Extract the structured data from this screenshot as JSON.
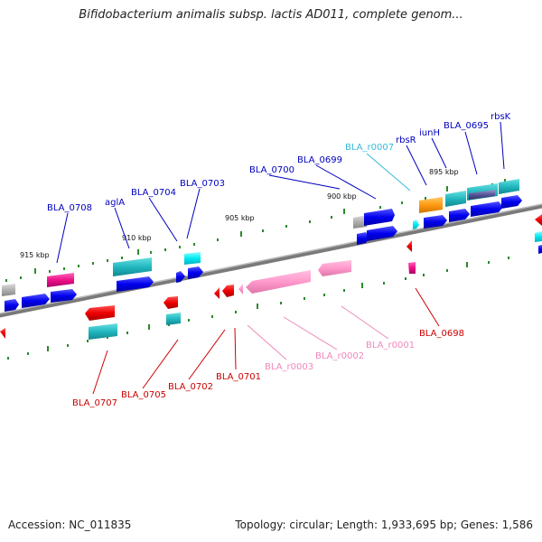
{
  "title": "Bifidobacterium animalis subsp. lactis AD011, complete genom...",
  "footer": {
    "accession": "Accession: NC_011835",
    "summary": "Topology: circular; Length: 1,933,695 bp; Genes: 1,586"
  },
  "ruler_labels": [
    "915 kbp",
    "910 kbp",
    "905 kbp",
    "900 kbp",
    "895 kbp"
  ],
  "colors": {
    "forward_label": "#0000c0",
    "reverse_label": "#cc0000",
    "rna_forward_label": "#33bbdd",
    "rna_reverse_label": "#ee88bb",
    "backbone": "#8a8a8a"
  },
  "genes_forward": [
    {
      "name": "BLA_0708"
    },
    {
      "name": "aglA"
    },
    {
      "name": "BLA_0704"
    },
    {
      "name": "BLA_0703"
    },
    {
      "name": "BLA_0700"
    },
    {
      "name": "BLA_0699"
    },
    {
      "name": "BLA_r0007"
    },
    {
      "name": "rbsR"
    },
    {
      "name": "iunH"
    },
    {
      "name": "BLA_0695"
    },
    {
      "name": "rbsK"
    }
  ],
  "genes_reverse": [
    {
      "name": "BLA_0707"
    },
    {
      "name": "BLA_0705"
    },
    {
      "name": "BLA_0702"
    },
    {
      "name": "BLA_0701"
    },
    {
      "name": "BLA_r0003"
    },
    {
      "name": "BLA_r0002"
    },
    {
      "name": "BLA_r0001"
    },
    {
      "name": "BLA_0698"
    }
  ]
}
